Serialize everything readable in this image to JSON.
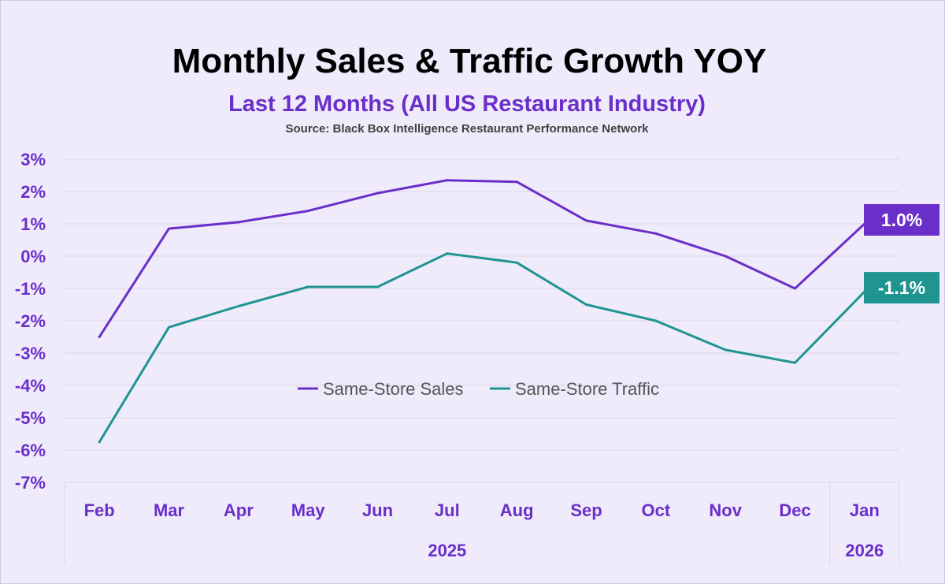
{
  "colors": {
    "sales": "#6a2fc9",
    "traffic": "#1f9490",
    "axis_text": "#6a2fc9",
    "grid": "#dcd7ea"
  },
  "chart_data": {
    "type": "line",
    "title": "Monthly Sales & Traffic Growth YOY",
    "subtitle": "Last 12 Months (All US Restaurant Industry)",
    "source": "Source: Black Box Intelligence Restaurant Performance Network",
    "categories": [
      "Feb",
      "Mar",
      "Apr",
      "May",
      "Jun",
      "Jul",
      "Aug",
      "Sep",
      "Oct",
      "Nov",
      "Dec",
      "Jan"
    ],
    "year_groups": [
      {
        "label": "2025",
        "start": 0,
        "end": 10
      },
      {
        "label": "2026",
        "start": 11,
        "end": 11
      }
    ],
    "ylim": [
      -7,
      3
    ],
    "yticks": [
      "3%",
      "2%",
      "1%",
      "0%",
      "-1%",
      "-2%",
      "-3%",
      "-4%",
      "-5%",
      "-6%",
      "-7%"
    ],
    "ytick_values": [
      3,
      2,
      1,
      0,
      -1,
      -2,
      -3,
      -4,
      -5,
      -6,
      -7
    ],
    "grid": true,
    "legend_position": "center",
    "series": [
      {
        "name": "Same-Store Sales",
        "values": [
          -2.5,
          0.85,
          1.05,
          1.4,
          1.95,
          2.35,
          2.3,
          1.1,
          0.7,
          0.0,
          -1.0,
          1.0
        ],
        "end_label": "1.0%"
      },
      {
        "name": "Same-Store Traffic",
        "values": [
          -5.75,
          -2.2,
          -1.55,
          -0.95,
          -0.95,
          0.08,
          -0.2,
          -1.5,
          -2.0,
          -2.9,
          -3.3,
          -1.1
        ],
        "end_label": "-1.1%"
      }
    ]
  }
}
